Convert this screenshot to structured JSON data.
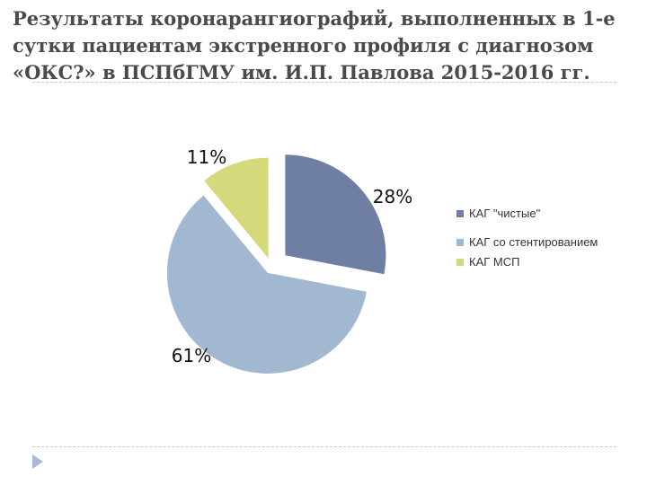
{
  "title_lines": [
    "Результаты коронарангиографий, выполненных в 1-е",
    "сутки пациентам экстренного профиля с диагнозом",
    "«ОКС?» в ПСПбГМУ им. И.П. Павлова 2015-2016 гг."
  ],
  "chart_data": {
    "type": "pie",
    "exploded": true,
    "slices": [
      {
        "name": "КАГ \"чистые\"",
        "value": 28,
        "label": "28%",
        "color": "#6f7ea3"
      },
      {
        "name": "КАГ со стентированием",
        "value": 61,
        "label": "61%",
        "color": "#a2b8d0"
      },
      {
        "name": "КАГ МСП",
        "value": 11,
        "label": "11%",
        "color": "#d4da7c"
      }
    ],
    "legend_position": "right"
  },
  "legend": [
    {
      "text": "КАГ \"чистые\"",
      "color": "#6f7ea3"
    },
    {
      "text": "КАГ со стентированием",
      "color": "#a2b8d0"
    },
    {
      "text": "КАГ МСП",
      "color": "#d4da7c"
    }
  ],
  "page_mark_icon": "triangle-right-icon",
  "page_mark_color": "#a9b9d3"
}
